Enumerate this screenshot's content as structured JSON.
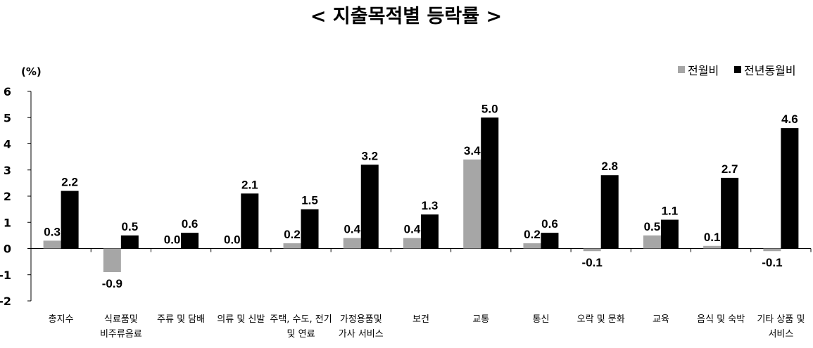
{
  "chart_data": {
    "type": "bar",
    "title": "< 지출목적별 등락률 >",
    "ylabel": "(%)",
    "ylim": [
      -2,
      6
    ],
    "yticks": [
      6,
      5,
      4,
      3,
      2,
      1,
      0,
      -1,
      -2
    ],
    "grid": false,
    "legend_position": "top-right",
    "categories": [
      [
        "총지수"
      ],
      [
        "식료품및",
        "비주류음료"
      ],
      [
        "주류 및 담배"
      ],
      [
        "의류 및 신발"
      ],
      [
        "주택, 수도, 전기",
        "및 연료"
      ],
      [
        "가정용품및",
        "가사 서비스"
      ],
      [
        "보건"
      ],
      [
        "교통"
      ],
      [
        "통신"
      ],
      [
        "오락 및 문화"
      ],
      [
        "교육"
      ],
      [
        "음식 및 숙박"
      ],
      [
        "기타 상품 및",
        "서비스"
      ]
    ],
    "series": [
      {
        "name": "전월비",
        "color": "#a6a6a6",
        "values": [
          0.3,
          -0.9,
          0.0,
          0.0,
          0.2,
          0.4,
          0.4,
          3.4,
          0.2,
          -0.1,
          0.5,
          0.1,
          -0.1
        ],
        "labels": [
          "0.3",
          "-0.9",
          "0.0",
          "0.0",
          "0.2",
          "0.4",
          "0.4",
          "3.4",
          "0.2",
          "-0.1",
          "0.5",
          "0.1",
          "-0.1"
        ]
      },
      {
        "name": "전년동월비",
        "color": "#000000",
        "values": [
          2.2,
          0.5,
          0.6,
          2.1,
          1.5,
          3.2,
          1.3,
          5.0,
          0.6,
          2.8,
          1.1,
          2.7,
          4.6
        ],
        "labels": [
          "2.2",
          "0.5",
          "0.6",
          "2.1",
          "1.5",
          "3.2",
          "1.3",
          "5.0",
          "0.6",
          "2.8",
          "1.1",
          "2.7",
          "4.6"
        ]
      }
    ]
  }
}
